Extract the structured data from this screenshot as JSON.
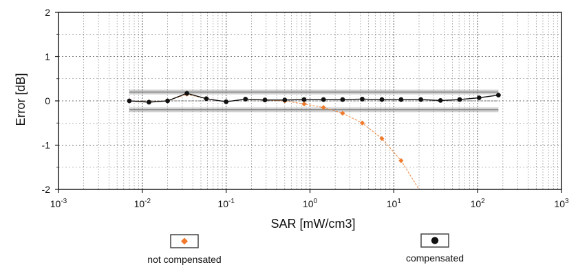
{
  "chart_data": {
    "type": "scatter",
    "title": "",
    "xlabel": "SAR [mW/cm3]",
    "ylabel": "Error [dB]",
    "x_scale": "log",
    "xlim": [
      0.001,
      1000
    ],
    "ylim": [
      -2,
      2
    ],
    "x_tick_labels": [
      {
        "base": "10",
        "exp": "-3"
      },
      {
        "base": "10",
        "exp": "-2"
      },
      {
        "base": "10",
        "exp": "-1"
      },
      {
        "base": "10",
        "exp": "0"
      },
      {
        "base": "10",
        "exp": "1"
      },
      {
        "base": "10",
        "exp": "2"
      },
      {
        "base": "10",
        "exp": "3"
      }
    ],
    "x_ticks": [
      0.001,
      0.01,
      0.1,
      1,
      10,
      100,
      1000
    ],
    "y_ticks": [
      -2,
      -1,
      0,
      1,
      2
    ],
    "y_tick_labels": [
      "-2",
      "-1",
      "0",
      "1",
      "2"
    ],
    "grid": true,
    "tolerance_band": [
      -0.2,
      0.2
    ],
    "legend_position": "bottom",
    "series": [
      {
        "name": "not compensated",
        "color": "#f07a2a",
        "marker": "diamond",
        "x": [
          0.007,
          0.012,
          0.02,
          0.034,
          0.058,
          0.1,
          0.17,
          0.29,
          0.5,
          0.85,
          1.45,
          2.45,
          4.2,
          7.2,
          12.2
        ],
        "y": [
          0.0,
          -0.02,
          0.0,
          0.15,
          0.05,
          -0.02,
          0.04,
          0.02,
          0.0,
          -0.07,
          -0.15,
          -0.28,
          -0.5,
          -0.85,
          -1.35
        ]
      },
      {
        "name": "compensated",
        "color": "#111111",
        "marker": "circle",
        "x": [
          0.007,
          0.012,
          0.02,
          0.034,
          0.058,
          0.1,
          0.17,
          0.29,
          0.5,
          0.85,
          1.45,
          2.45,
          4.2,
          7.2,
          12.2,
          21,
          36,
          61,
          104,
          177
        ],
        "y": [
          0.0,
          -0.03,
          0.0,
          0.17,
          0.05,
          -0.02,
          0.04,
          0.02,
          0.02,
          0.03,
          0.03,
          0.03,
          0.04,
          0.03,
          0.03,
          0.03,
          0.01,
          0.03,
          0.07,
          0.13
        ]
      }
    ]
  },
  "colors": {
    "not_compensated": "#f07a2a",
    "compensated": "#111111",
    "grid": "#333333",
    "band": "#9a9a9a"
  }
}
